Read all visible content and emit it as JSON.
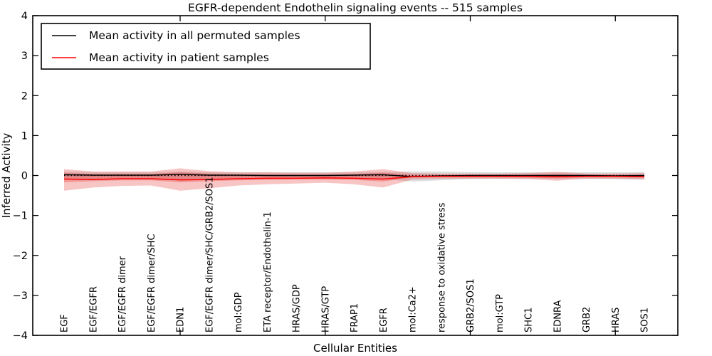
{
  "title": "EGFR-dependent Endothelin signaling events -- 515 samples",
  "legend": {
    "items": [
      {
        "label": "Mean activity in all permuted samples",
        "color": "#000000"
      },
      {
        "label": "Mean activity in patient samples",
        "color": "#ff0000"
      }
    ]
  },
  "chart_data": {
    "type": "line",
    "title": "EGFR-dependent Endothelin signaling events -- 515 samples",
    "xlabel": "Cellular Entities",
    "ylabel": "Inferred Activity",
    "ylim": [
      -4,
      4
    ],
    "ytick_labels": [
      "4",
      "3",
      "2",
      "1",
      "0",
      "−1",
      "−2",
      "−3",
      "−4"
    ],
    "ytick_values": [
      4,
      3,
      2,
      1,
      0,
      -1,
      -2,
      -3,
      -4
    ],
    "xtick_mark_positions": [
      5,
      10,
      15,
      20
    ],
    "grid": false,
    "legend_position": "upper left",
    "categories": [
      "EGF",
      "EGF/EGFR",
      "EGF/EGFR dimer",
      "EGF/EGFR dimer/SHC",
      "EDN1",
      "EGF/EGFR dimer/SHC/GRB2/SOS1",
      "mol:GDP",
      "ETA receptor/Endothelin-1",
      "HRAS/GDP",
      "HRAS/GTP",
      "FRAP1",
      "EGFR",
      "mol:Ca2+",
      "response to oxidative stress",
      "GRB2/SOS1",
      "mol:GTP",
      "SHC1",
      "EDNRA",
      "GRB2",
      "HRAS",
      "SOS1"
    ],
    "baseline_reference": 0,
    "series": [
      {
        "name": "Mean activity in all permuted samples",
        "color": "#000000",
        "style": "solid",
        "values": [
          0.02,
          0.01,
          0.01,
          0.01,
          0.03,
          0.01,
          0.01,
          0.0,
          0.0,
          0.0,
          0.01,
          0.02,
          -0.03,
          -0.01,
          0.0,
          0.0,
          0.0,
          0.0,
          0.0,
          -0.01,
          0.0
        ]
      },
      {
        "name": "Mean activity in patient samples",
        "color": "#ff0000",
        "style": "solid",
        "values": [
          -0.09,
          -0.1,
          -0.08,
          -0.08,
          -0.11,
          -0.1,
          -0.08,
          -0.07,
          -0.07,
          -0.06,
          -0.07,
          -0.09,
          -0.03,
          -0.02,
          -0.02,
          -0.02,
          -0.02,
          -0.03,
          -0.02,
          -0.02,
          -0.03
        ]
      }
    ],
    "bands": [
      {
        "name": "permuted-samples-spread",
        "color": "#000000",
        "opacity": 0.13,
        "upper": [
          0.1,
          0.08,
          0.08,
          0.08,
          0.1,
          0.08,
          0.08,
          0.08,
          0.08,
          0.08,
          0.08,
          0.09,
          0.1,
          0.1,
          0.09,
          0.08,
          0.08,
          0.08,
          0.08,
          0.08,
          0.09
        ],
        "lower": [
          -0.1,
          -0.09,
          -0.08,
          -0.08,
          -0.1,
          -0.09,
          -0.08,
          -0.08,
          -0.08,
          -0.08,
          -0.08,
          -0.09,
          -0.15,
          -0.12,
          -0.09,
          -0.08,
          -0.08,
          -0.09,
          -0.08,
          -0.09,
          -0.1
        ]
      },
      {
        "name": "patient-samples-outer-spread",
        "color": "#e84040",
        "opacity": 0.3,
        "upper": [
          0.16,
          0.1,
          0.1,
          0.1,
          0.18,
          0.11,
          0.08,
          0.08,
          0.07,
          0.07,
          0.1,
          0.16,
          0.06,
          0.05,
          0.05,
          0.05,
          0.06,
          0.09,
          0.05,
          0.05,
          0.06
        ],
        "lower": [
          -0.38,
          -0.3,
          -0.26,
          -0.25,
          -0.38,
          -0.32,
          -0.25,
          -0.22,
          -0.2,
          -0.18,
          -0.22,
          -0.3,
          -0.1,
          -0.08,
          -0.08,
          -0.08,
          -0.09,
          -0.13,
          -0.08,
          -0.08,
          -0.1
        ]
      },
      {
        "name": "patient-samples-inner-spread",
        "color": "#e84040",
        "opacity": 0.35,
        "upper": [
          0.06,
          0.04,
          0.04,
          0.04,
          0.08,
          0.05,
          0.03,
          0.03,
          0.03,
          0.03,
          0.04,
          0.07,
          0.02,
          0.02,
          0.02,
          0.02,
          0.02,
          0.04,
          0.02,
          0.02,
          0.02
        ],
        "lower": [
          -0.17,
          -0.14,
          -0.12,
          -0.12,
          -0.17,
          -0.14,
          -0.12,
          -0.11,
          -0.1,
          -0.1,
          -0.11,
          -0.15,
          -0.05,
          -0.04,
          -0.04,
          -0.04,
          -0.05,
          -0.07,
          -0.04,
          -0.04,
          -0.05
        ]
      }
    ]
  }
}
